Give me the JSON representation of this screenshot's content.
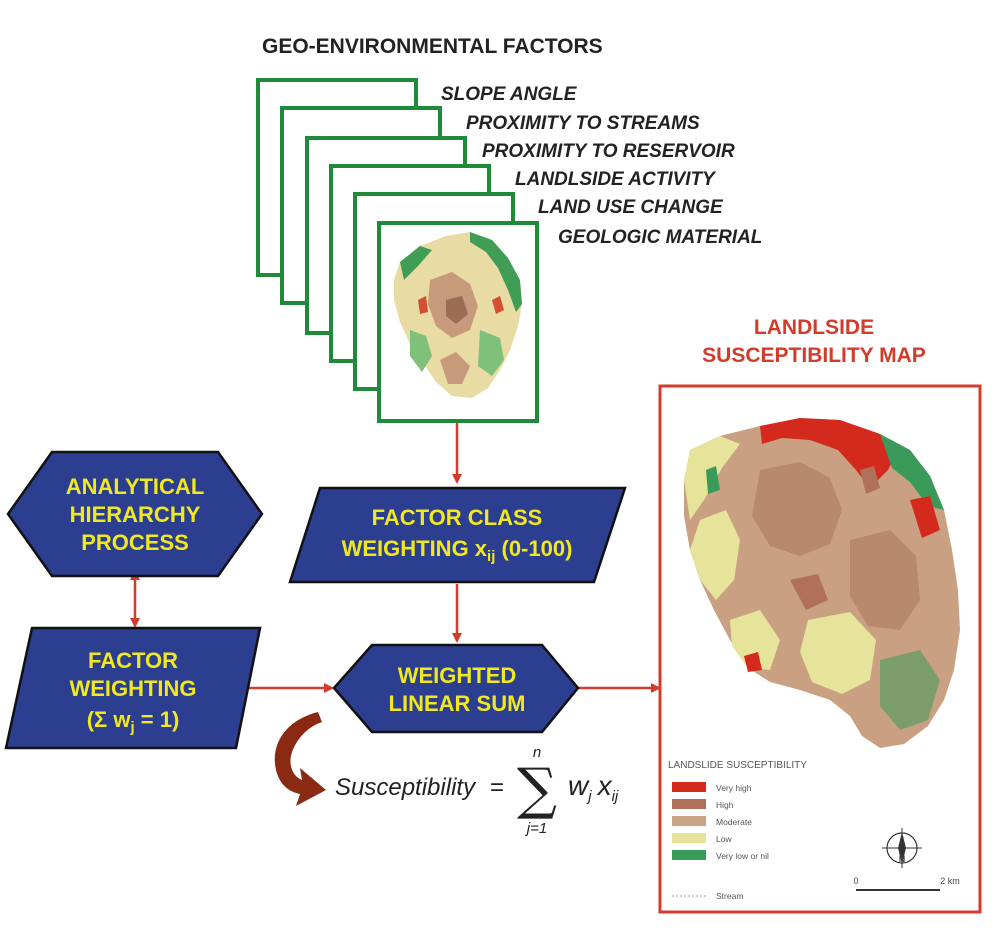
{
  "header": {
    "title": "GEO-ENVIRONMENTAL FACTORS"
  },
  "factors": [
    "SLOPE ANGLE",
    "PROXIMITY TO STREAMS",
    "PROXIMITY TO RESERVOIR",
    "LANDLSIDE ACTIVITY",
    "LAND USE CHANGE",
    "GEOLOGIC MATERIAL"
  ],
  "ahp": {
    "lines": [
      "ANALYTICAL",
      "HIERARCHY",
      "PROCESS"
    ]
  },
  "factor_class": {
    "line1": "FACTOR CLASS",
    "line2_main": "WEIGHTING x",
    "line2_sub": "ij",
    "line2_tail": " (0-100)"
  },
  "factor_weighting": {
    "line1": "FACTOR",
    "line2": "WEIGHTING",
    "line3_open": "(Σ w",
    "line3_sub": "j",
    "line3_close": " = 1)"
  },
  "weighted_sum": {
    "line1": "WEIGHTED",
    "line2": "LINEAR SUM"
  },
  "formula": {
    "lhs": "Susceptibility",
    "equals": "=",
    "sigma": "∑",
    "upper": "n",
    "lower": "j=1",
    "w": "w",
    "w_sub": "j",
    "x": "x",
    "x_sub": "ij"
  },
  "map": {
    "title_line1": "LANDLSIDE",
    "title_line2": "SUSCEPTIBILITY MAP",
    "legend_title": "LANDSLIDE SUSCEPTIBILITY",
    "legend": [
      {
        "label": "Very high",
        "color": "#d42a1e"
      },
      {
        "label": "High",
        "color": "#b0705a"
      },
      {
        "label": "Moderate",
        "color": "#c8a486"
      },
      {
        "label": "Low",
        "color": "#e6e39a"
      },
      {
        "label": "Very low or nil",
        "color": "#3a9a5a"
      }
    ],
    "stream_label": "Stream",
    "scale_start": "0",
    "scale_end": "2 km",
    "north": "N"
  },
  "colors": {
    "box_fill": "#2b3e8f",
    "box_text": "#f2e81e",
    "arrow": "#d33b2b",
    "layer_border": "#1e8a3a",
    "map_border": "#d33b2b",
    "curved_arrow": "#8a2a12"
  }
}
